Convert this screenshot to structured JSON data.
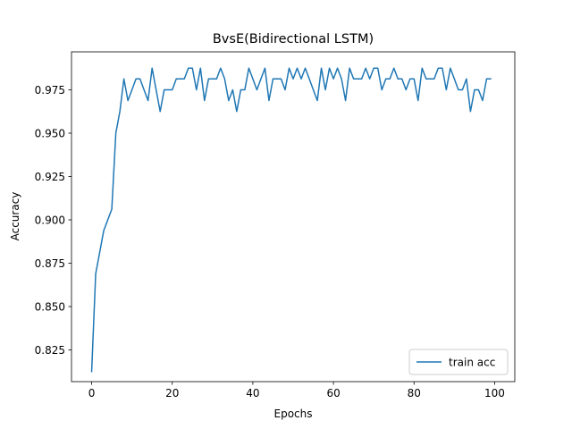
{
  "chart_data": {
    "type": "line",
    "title": "BvsE(Bidirectional LSTM)",
    "xlabel": "Epochs",
    "ylabel": "Accuracy",
    "xlim": [
      -5,
      105
    ],
    "ylim": [
      0.8067,
      0.9969
    ],
    "xticks": [
      0,
      20,
      40,
      60,
      80,
      100
    ],
    "yticks": [
      0.825,
      0.85,
      0.875,
      0.9,
      0.925,
      0.95,
      0.975
    ],
    "xtick_labels": [
      "0",
      "20",
      "40",
      "60",
      "80",
      "100"
    ],
    "ytick_labels": [
      "0.825",
      "0.850",
      "0.875",
      "0.900",
      "0.925",
      "0.950",
      "0.975"
    ],
    "grid": false,
    "legend_position": "lower-right",
    "series": [
      {
        "name": "train acc",
        "color": "#1f77b4",
        "x": [
          0,
          1,
          2,
          3,
          4,
          5,
          6,
          7,
          8,
          9,
          10,
          11,
          12,
          13,
          14,
          15,
          16,
          17,
          18,
          19,
          20,
          21,
          22,
          23,
          24,
          25,
          26,
          27,
          28,
          29,
          30,
          31,
          32,
          33,
          34,
          35,
          36,
          37,
          38,
          39,
          40,
          41,
          42,
          43,
          44,
          45,
          46,
          47,
          48,
          49,
          50,
          51,
          52,
          53,
          54,
          55,
          56,
          57,
          58,
          59,
          60,
          61,
          62,
          63,
          64,
          65,
          66,
          67,
          68,
          69,
          70,
          71,
          72,
          73,
          74,
          75,
          76,
          77,
          78,
          79,
          80,
          81,
          82,
          83,
          84,
          85,
          86,
          87,
          88,
          89,
          90,
          91,
          92,
          93,
          94,
          95,
          96,
          97,
          98,
          99
        ],
        "values": [
          0.8125,
          0.8688,
          0.8813,
          0.8938,
          0.9,
          0.9062,
          0.95,
          0.9625,
          0.9813,
          0.9688,
          0.975,
          0.9813,
          0.9813,
          0.975,
          0.9688,
          0.9875,
          0.975,
          0.9625,
          0.975,
          0.975,
          0.975,
          0.9813,
          0.9813,
          0.9813,
          0.9875,
          0.9875,
          0.975,
          0.9875,
          0.9688,
          0.9813,
          0.9813,
          0.9813,
          0.9875,
          0.9813,
          0.9688,
          0.975,
          0.9625,
          0.975,
          0.975,
          0.9875,
          0.9813,
          0.975,
          0.9813,
          0.9875,
          0.9688,
          0.9813,
          0.9813,
          0.9813,
          0.975,
          0.9875,
          0.9813,
          0.9875,
          0.9813,
          0.9875,
          0.9813,
          0.975,
          0.9688,
          0.9875,
          0.975,
          0.9875,
          0.9813,
          0.9875,
          0.9813,
          0.9688,
          0.9875,
          0.9813,
          0.9813,
          0.9813,
          0.9875,
          0.9813,
          0.9875,
          0.9875,
          0.975,
          0.9813,
          0.9813,
          0.9875,
          0.9813,
          0.9813,
          0.975,
          0.9813,
          0.9813,
          0.9688,
          0.9875,
          0.9813,
          0.9813,
          0.9813,
          0.9875,
          0.9875,
          0.975,
          0.9875,
          0.9813,
          0.975,
          0.975,
          0.9813,
          0.9625,
          0.975,
          0.975,
          0.9688,
          0.9813,
          0.9813
        ]
      }
    ]
  }
}
